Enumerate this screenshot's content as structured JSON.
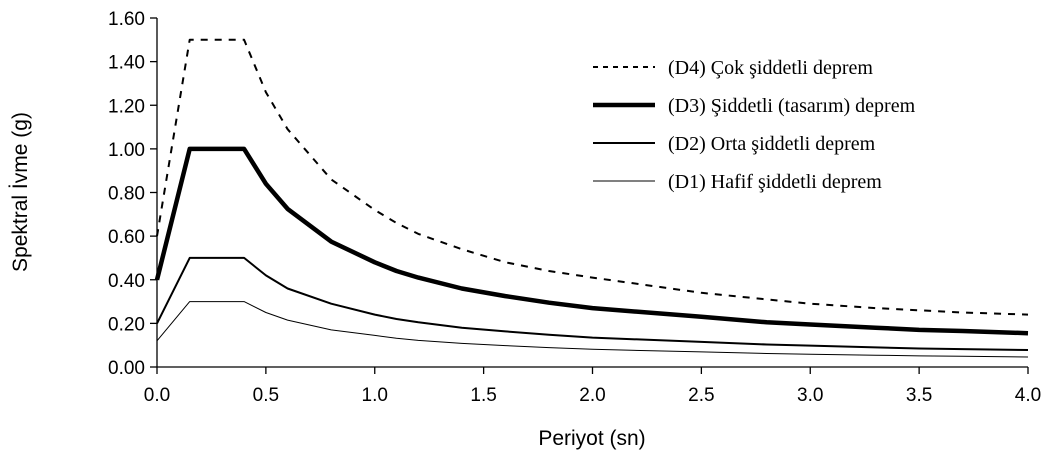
{
  "chart_data": {
    "type": "line",
    "title": "",
    "xlabel": "Periyot (sn)",
    "ylabel": "Spektral İvme (g)",
    "xlim": [
      0,
      4
    ],
    "ylim": [
      0,
      1.6
    ],
    "x_ticks": [
      "0.0",
      "0.5",
      "1.0",
      "1.5",
      "2.0",
      "2.5",
      "3.0",
      "3.5",
      "4.0"
    ],
    "x_tick_values": [
      0,
      0.5,
      1,
      1.5,
      2,
      2.5,
      3,
      3.5,
      4
    ],
    "y_ticks": [
      "0.00",
      "0.20",
      "0.40",
      "0.60",
      "0.80",
      "1.00",
      "1.20",
      "1.40",
      "1.60"
    ],
    "y_tick_values": [
      0,
      0.2,
      0.4,
      0.6,
      0.8,
      1.0,
      1.2,
      1.4,
      1.6
    ],
    "grid": false,
    "legend_position": "top-right",
    "x": [
      0,
      0.15,
      0.4,
      0.5,
      0.6,
      0.8,
      1.0,
      1.1,
      1.2,
      1.4,
      1.6,
      1.8,
      2.0,
      2.5,
      2.8,
      3.0,
      3.3,
      3.5,
      3.7,
      4.0
    ],
    "series": [
      {
        "name": "(D4)  Çok şiddetli deprem",
        "style": "dashed",
        "values": [
          0.6,
          1.5,
          1.5,
          1.26,
          1.09,
          0.86,
          0.72,
          0.66,
          0.61,
          0.54,
          0.48,
          0.44,
          0.41,
          0.34,
          0.31,
          0.29,
          0.27,
          0.26,
          0.25,
          0.24
        ]
      },
      {
        "name": "(D3)  Şiddetli (tasarım) deprem",
        "style": "thick",
        "values": [
          0.4,
          1.0,
          1.0,
          0.84,
          0.725,
          0.575,
          0.48,
          0.44,
          0.41,
          0.36,
          0.325,
          0.295,
          0.27,
          0.23,
          0.205,
          0.195,
          0.18,
          0.17,
          0.165,
          0.155
        ]
      },
      {
        "name": "(D2)  Orta şiddetli deprem",
        "style": "medium",
        "values": [
          0.2,
          0.5,
          0.5,
          0.42,
          0.36,
          0.29,
          0.24,
          0.22,
          0.205,
          0.18,
          0.163,
          0.148,
          0.135,
          0.115,
          0.103,
          0.098,
          0.09,
          0.085,
          0.082,
          0.078
        ]
      },
      {
        "name": "(D1)  Hafif şiddetli deprem",
        "style": "thin",
        "values": [
          0.12,
          0.3,
          0.3,
          0.25,
          0.215,
          0.17,
          0.145,
          0.132,
          0.122,
          0.108,
          0.098,
          0.089,
          0.081,
          0.069,
          0.062,
          0.058,
          0.054,
          0.051,
          0.049,
          0.046
        ]
      }
    ]
  }
}
